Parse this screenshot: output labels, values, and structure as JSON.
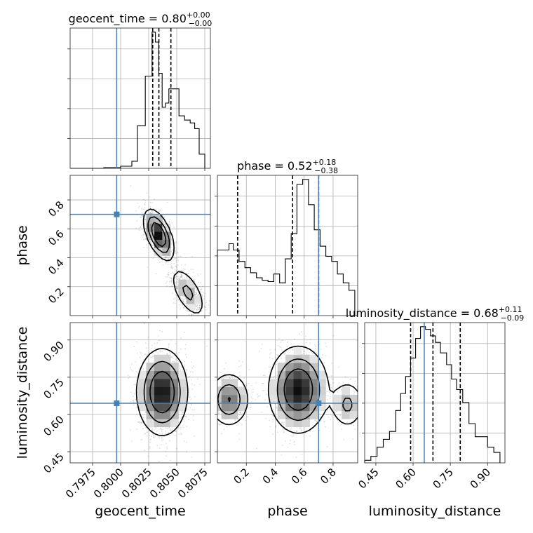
{
  "chart_data": {
    "type": "corner",
    "parameters": [
      {
        "name": "geocent_time",
        "lim": [
          0.7955,
          0.808
        ],
        "truth": 0.79965,
        "ticks": [
          0.7975,
          0.8,
          0.8025,
          0.805,
          0.8075
        ],
        "tick_labels": [
          "0.7975",
          "0.8000",
          "0.8025",
          "0.8050",
          "0.8075"
        ],
        "quantiles": [
          0.80286,
          0.80341,
          0.80448
        ],
        "title_value": "0.80",
        "title_plus": "+0.00",
        "title_minus": "−0.00"
      },
      {
        "name": "phase",
        "lim": [
          0.0,
          0.97
        ],
        "truth": 0.7,
        "ticks": [
          0.2,
          0.4,
          0.6,
          0.8
        ],
        "tick_labels": [
          "0.2",
          "0.4",
          "0.6",
          "0.8"
        ],
        "quantiles": [
          0.14,
          0.52,
          0.7
        ],
        "title_value": "0.52",
        "title_plus": "+0.18",
        "title_minus": "−0.38"
      },
      {
        "name": "luminosity_distance",
        "lim": [
          0.405,
          0.97
        ],
        "truth": 0.645,
        "ticks": [
          0.45,
          0.6,
          0.75,
          0.9
        ],
        "tick_labels": [
          "0.45",
          "0.60",
          "0.75",
          "0.90"
        ],
        "quantiles": [
          0.59,
          0.68,
          0.79
        ],
        "title_value": "0.68",
        "title_plus": "+0.11",
        "title_minus": "−0.09"
      }
    ],
    "histograms": [
      {
        "param": "geocent_time",
        "edges": [
          0.7955,
          0.797,
          0.7985,
          0.8,
          0.801,
          0.8015,
          0.8022,
          0.8028,
          0.8031,
          0.8034,
          0.8037,
          0.804,
          0.8043,
          0.8047,
          0.8052,
          0.8057,
          0.8062,
          0.8066,
          0.807,
          0.8075
        ],
        "counts": [
          0.0,
          0.0,
          0.5,
          1.5,
          5,
          30,
          65,
          96,
          89,
          67,
          43,
          46,
          56,
          56,
          37,
          34,
          32,
          28,
          10
        ]
      },
      {
        "param": "phase",
        "edges": [
          0.0,
          0.04,
          0.08,
          0.11,
          0.15,
          0.19,
          0.23,
          0.27,
          0.31,
          0.35,
          0.39,
          0.43,
          0.47,
          0.51,
          0.55,
          0.59,
          0.63,
          0.67,
          0.71,
          0.75,
          0.79,
          0.83,
          0.87,
          0.91,
          0.95
        ],
        "counts": [
          52,
          52,
          57,
          52,
          43,
          38,
          34,
          30,
          28,
          27,
          33,
          26,
          45,
          65,
          104,
          108,
          88,
          68,
          55,
          47,
          43,
          33,
          26,
          20
        ]
      },
      {
        "param": "luminosity_distance",
        "edges": [
          0.405,
          0.43,
          0.455,
          0.48,
          0.505,
          0.53,
          0.55,
          0.57,
          0.59,
          0.61,
          0.63,
          0.65,
          0.67,
          0.69,
          0.71,
          0.735,
          0.755,
          0.775,
          0.8,
          0.825,
          0.85,
          0.875,
          0.9,
          0.925,
          0.95
        ],
        "counts": [
          2,
          5,
          12,
          18,
          24,
          40,
          53,
          66,
          80,
          95,
          104,
          102,
          97,
          92,
          84,
          75,
          64,
          56,
          46,
          30,
          20,
          20,
          12,
          8
        ]
      }
    ],
    "grid": true,
    "truth_color": "#4682b4",
    "quantile_style": "dashed"
  }
}
